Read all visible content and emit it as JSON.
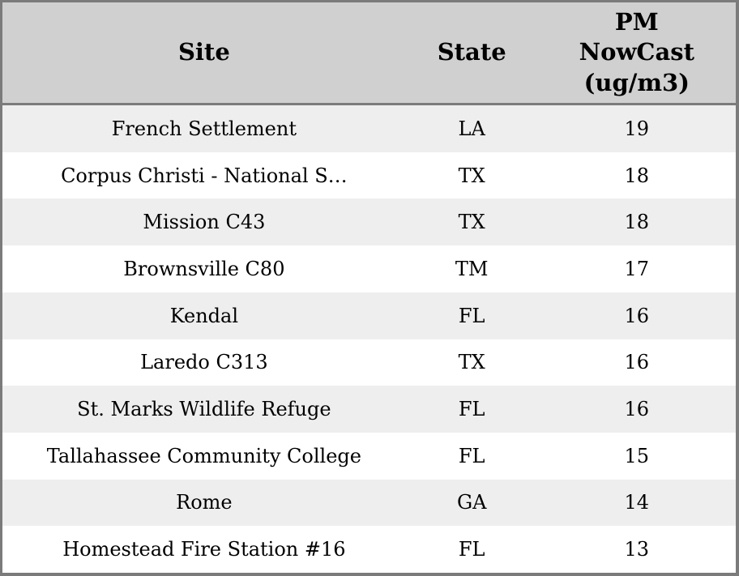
{
  "colors": {
    "header_bg": "#d0d0d0",
    "row_alt_bg": "#eeeeee",
    "row_bg": "#ffffff",
    "border": "#7b7b7b",
    "text": "#000000"
  },
  "table": {
    "headers": {
      "site": "Site",
      "state": "State",
      "pm_lines": [
        "PM",
        "NowCast",
        "(ug/m3)"
      ]
    },
    "rows": [
      {
        "site": "French Settlement",
        "state": "LA",
        "pm_nowcast": "19"
      },
      {
        "site": "Corpus Christi - National S…",
        "state": "TX",
        "pm_nowcast": "18"
      },
      {
        "site": "Mission C43",
        "state": "TX",
        "pm_nowcast": "18"
      },
      {
        "site": "Brownsville C80",
        "state": "TM",
        "pm_nowcast": "17"
      },
      {
        "site": "Kendal",
        "state": "FL",
        "pm_nowcast": "16"
      },
      {
        "site": "Laredo C313",
        "state": "TX",
        "pm_nowcast": "16"
      },
      {
        "site": "St. Marks Wildlife Refuge",
        "state": "FL",
        "pm_nowcast": "16"
      },
      {
        "site": "Tallahassee Community College",
        "state": "FL",
        "pm_nowcast": "15"
      },
      {
        "site": "Rome",
        "state": "GA",
        "pm_nowcast": "14"
      },
      {
        "site": "Homestead Fire Station #16",
        "state": "FL",
        "pm_nowcast": "13"
      }
    ]
  },
  "chart_data": {
    "type": "table",
    "title": "",
    "columns": [
      "Site",
      "State",
      "PM NowCast (ug/m3)"
    ],
    "rows": [
      [
        "French Settlement",
        "LA",
        19
      ],
      [
        "Corpus Christi - National S…",
        "TX",
        18
      ],
      [
        "Mission C43",
        "TX",
        18
      ],
      [
        "Brownsville C80",
        "TM",
        17
      ],
      [
        "Kendal",
        "FL",
        16
      ],
      [
        "Laredo C313",
        "TX",
        16
      ],
      [
        "St. Marks Wildlife Refuge",
        "FL",
        16
      ],
      [
        "Tallahassee Community College",
        "FL",
        15
      ],
      [
        "Rome",
        "GA",
        14
      ],
      [
        "Homestead Fire Station #16",
        "FL",
        13
      ]
    ]
  }
}
